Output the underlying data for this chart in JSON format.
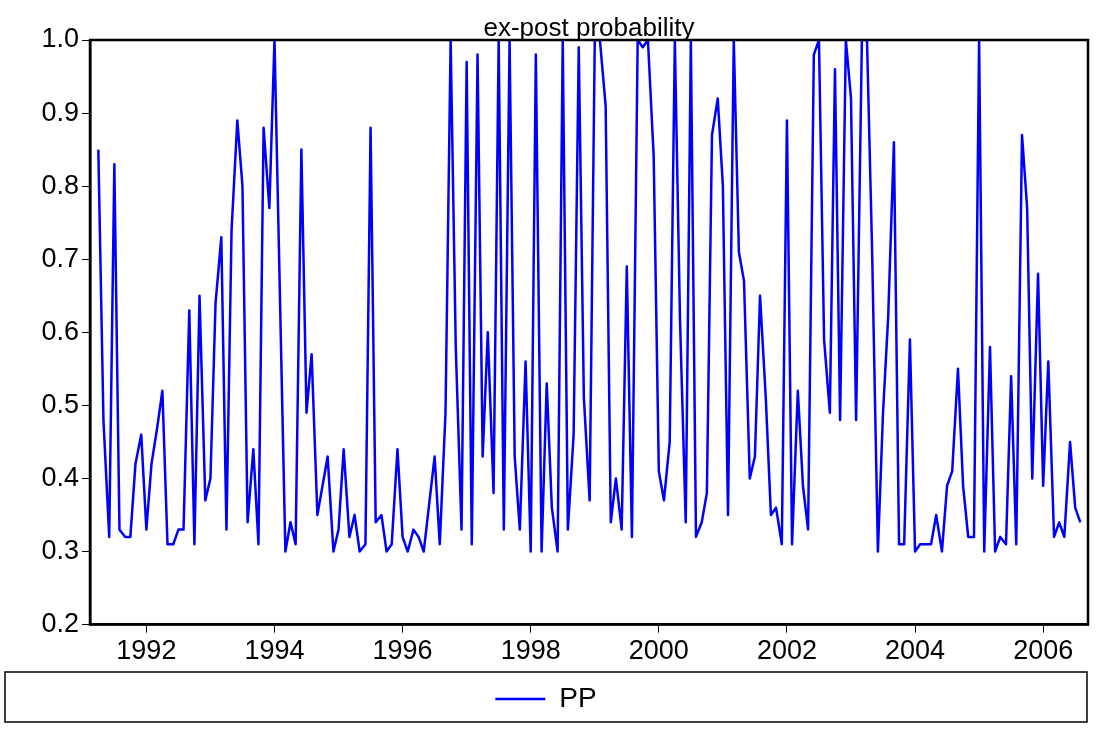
{
  "chart_data": {
    "type": "line",
    "title": "ex-post probability",
    "x": [
      1991.75,
      1991.83,
      1991.92,
      1992,
      1992.08,
      1992.17,
      1992.25,
      1992.33,
      1992.42,
      1992.5,
      1992.58,
      1992.67,
      1992.75,
      1992.83,
      1992.92,
      1993,
      1993.08,
      1993.17,
      1993.25,
      1993.33,
      1993.42,
      1993.5,
      1993.58,
      1993.67,
      1993.75,
      1993.83,
      1993.92,
      1994,
      1994.08,
      1994.17,
      1994.25,
      1994.33,
      1994.42,
      1994.5,
      1994.67,
      1994.75,
      1994.83,
      1994.92,
      1995,
      1995.08,
      1995.17,
      1995.25,
      1995.33,
      1995.42,
      1995.5,
      1995.58,
      1995.67,
      1995.75,
      1995.83,
      1995.92,
      1996,
      1996.08,
      1996.17,
      1996.25,
      1996.33,
      1996.42,
      1996.5,
      1996.58,
      1996.67,
      1996.75,
      1996.83,
      1997,
      1997.08,
      1997.17,
      1997.25,
      1997.33,
      1997.42,
      1997.5,
      1997.58,
      1997.67,
      1997.75,
      1997.83,
      1997.92,
      1998,
      1998.08,
      1998.17,
      1998.25,
      1998.33,
      1998.42,
      1998.5,
      1998.58,
      1998.67,
      1998.75,
      1998.83,
      1998.92,
      1999,
      1999.08,
      1999.17,
      1999.25,
      1999.33,
      1999.42,
      1999.5,
      1999.58,
      1999.67,
      1999.75,
      1999.83,
      1999.92,
      2000,
      2000.08,
      2000.17,
      2000.25,
      2000.33,
      2000.42,
      2000.5,
      2000.58,
      2000.67,
      2000.75,
      2000.83,
      2000.92,
      2001,
      2001.08,
      2001.17,
      2001.25,
      2001.33,
      2001.42,
      2001.5,
      2001.58,
      2001.67,
      2001.75,
      2001.83,
      2001.92,
      2002,
      2002.08,
      2002.17,
      2002.25,
      2002.33,
      2002.42,
      2002.5,
      2002.58,
      2002.67,
      2002.75,
      2002.83,
      2002.92,
      2003,
      2003.08,
      2003.17,
      2003.25,
      2003.33,
      2003.42,
      2003.5,
      2003.58,
      2003.67,
      2003.75,
      2003.83,
      2003.92,
      2004,
      2004.08,
      2004.17,
      2004.25,
      2004.33,
      2004.42,
      2004.5,
      2004.58,
      2004.67,
      2004.75,
      2004.83,
      2004.92,
      2005,
      2005.08,
      2005.17,
      2005.25,
      2005.33,
      2005.42,
      2005.5,
      2005.58,
      2005.67,
      2005.75,
      2005.83,
      2005.92,
      2006,
      2006.08,
      2006.17,
      2006.25,
      2006.33,
      2006.42,
      2006.5,
      2006.58,
      2006.67,
      2006.75,
      2006.83,
      2006.92,
      2007,
      2007.08
    ],
    "series": [
      {
        "name": "PP",
        "color": "#0000ff",
        "values": [
          0.85,
          0.48,
          0.32,
          0.83,
          0.33,
          0.32,
          0.32,
          0.42,
          0.46,
          0.33,
          0.42,
          0.47,
          0.52,
          0.31,
          0.31,
          0.33,
          0.33,
          0.63,
          0.31,
          0.65,
          0.37,
          0.4,
          0.64,
          0.73,
          0.33,
          0.74,
          0.89,
          0.8,
          0.34,
          0.44,
          0.31,
          0.88,
          0.77,
          1.0,
          0.3,
          0.34,
          0.31,
          0.85,
          0.49,
          0.57,
          0.35,
          0.39,
          0.43,
          0.3,
          0.33,
          0.44,
          0.32,
          0.35,
          0.3,
          0.31,
          0.88,
          0.34,
          0.35,
          0.3,
          0.31,
          0.44,
          0.32,
          0.3,
          0.33,
          0.32,
          0.3,
          0.43,
          0.31,
          0.49,
          1.0,
          0.58,
          0.33,
          0.97,
          0.31,
          0.98,
          0.43,
          0.6,
          0.38,
          1.0,
          0.33,
          1.0,
          0.43,
          0.33,
          0.56,
          0.3,
          0.98,
          0.3,
          0.53,
          0.36,
          0.3,
          1.0,
          0.33,
          0.46,
          0.99,
          0.51,
          0.37,
          1.0,
          1.0,
          0.91,
          0.34,
          0.4,
          0.33,
          0.69,
          0.32,
          1.0,
          0.99,
          1.0,
          0.84,
          0.41,
          0.37,
          0.45,
          1.0,
          0.62,
          0.34,
          1.0,
          0.32,
          0.34,
          0.38,
          0.87,
          0.92,
          0.8,
          0.35,
          1.0,
          0.71,
          0.67,
          0.4,
          0.43,
          0.65,
          0.51,
          0.35,
          0.36,
          0.31,
          0.89,
          0.31,
          0.52,
          0.39,
          0.33,
          0.98,
          1.0,
          0.59,
          0.49,
          0.96,
          0.48,
          1.0,
          0.92,
          0.48,
          1.0,
          1.0,
          0.71,
          0.3,
          0.49,
          0.62,
          0.86,
          0.31,
          0.31,
          0.59,
          0.3,
          0.31,
          0.31,
          0.31,
          0.35,
          0.3,
          0.39,
          0.41,
          0.55,
          0.39,
          0.32,
          0.32,
          1.0,
          0.3,
          0.58,
          0.3,
          0.32,
          0.31,
          0.54,
          0.31,
          0.87,
          0.77,
          0.4,
          0.68,
          0.39,
          0.56,
          0.32,
          0.34,
          0.32,
          0.45,
          0.36,
          0.34
        ]
      }
    ],
    "xlim": [
      1991.62,
      2007.2
    ],
    "xticks": [
      {
        "value": 1992.5,
        "label": "1992"
      },
      {
        "value": 1994.5,
        "label": "1994"
      },
      {
        "value": 1996.5,
        "label": "1996"
      },
      {
        "value": 1998.5,
        "label": "1998"
      },
      {
        "value": 2000.5,
        "label": "2000"
      },
      {
        "value": 2002.5,
        "label": "2002"
      },
      {
        "value": 2004.5,
        "label": "2004"
      },
      {
        "value": 2006.5,
        "label": "2006"
      }
    ],
    "ylim": [
      0.2,
      1.0
    ],
    "yticks": [
      {
        "value": 0.2,
        "label": "0.2"
      },
      {
        "value": 0.3,
        "label": "0.3"
      },
      {
        "value": 0.4,
        "label": "0.4"
      },
      {
        "value": 0.5,
        "label": "0.5"
      },
      {
        "value": 0.6,
        "label": "0.6"
      },
      {
        "value": 0.7,
        "label": "0.7"
      },
      {
        "value": 0.8,
        "label": "0.8"
      },
      {
        "value": 0.9,
        "label": "0.9"
      },
      {
        "value": 1.0,
        "label": "1.0"
      }
    ],
    "legend": "bottom",
    "marker": "none",
    "line_style": "solid"
  }
}
